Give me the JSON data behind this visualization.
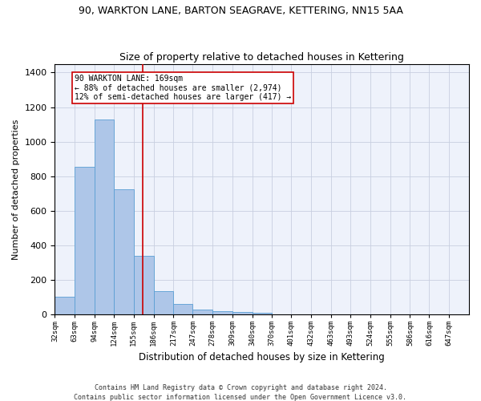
{
  "title1": "90, WARKTON LANE, BARTON SEAGRAVE, KETTERING, NN15 5AA",
  "title2": "Size of property relative to detached houses in Kettering",
  "xlabel": "Distribution of detached houses by size in Kettering",
  "ylabel": "Number of detached properties",
  "bar_color": "#aec6e8",
  "bar_edge_color": "#5a9fd4",
  "vline_color": "#cc0000",
  "vline_x": 169,
  "categories": [
    "32sqm",
    "63sqm",
    "94sqm",
    "124sqm",
    "155sqm",
    "186sqm",
    "217sqm",
    "247sqm",
    "278sqm",
    "309sqm",
    "340sqm",
    "370sqm",
    "401sqm",
    "432sqm",
    "463sqm",
    "493sqm",
    "524sqm",
    "555sqm",
    "586sqm",
    "616sqm",
    "647sqm"
  ],
  "bin_edges": [
    32,
    63,
    94,
    124,
    155,
    186,
    217,
    247,
    278,
    309,
    340,
    370,
    401,
    432,
    463,
    493,
    524,
    555,
    586,
    616,
    647,
    678
  ],
  "values": [
    100,
    855,
    1130,
    725,
    340,
    135,
    60,
    30,
    20,
    15,
    10,
    0,
    0,
    0,
    0,
    0,
    0,
    0,
    0,
    0,
    0
  ],
  "ylim": [
    0,
    1450
  ],
  "yticks": [
    0,
    200,
    400,
    600,
    800,
    1000,
    1200,
    1400
  ],
  "annotation_text": "90 WARKTON LANE: 169sqm\n← 88% of detached houses are smaller (2,974)\n12% of semi-detached houses are larger (417) →",
  "footer1": "Contains HM Land Registry data © Crown copyright and database right 2024.",
  "footer2": "Contains public sector information licensed under the Open Government Licence v3.0.",
  "bg_color": "#eef2fb",
  "grid_color": "#c8cfe0",
  "title1_fontsize": 9,
  "title2_fontsize": 9
}
